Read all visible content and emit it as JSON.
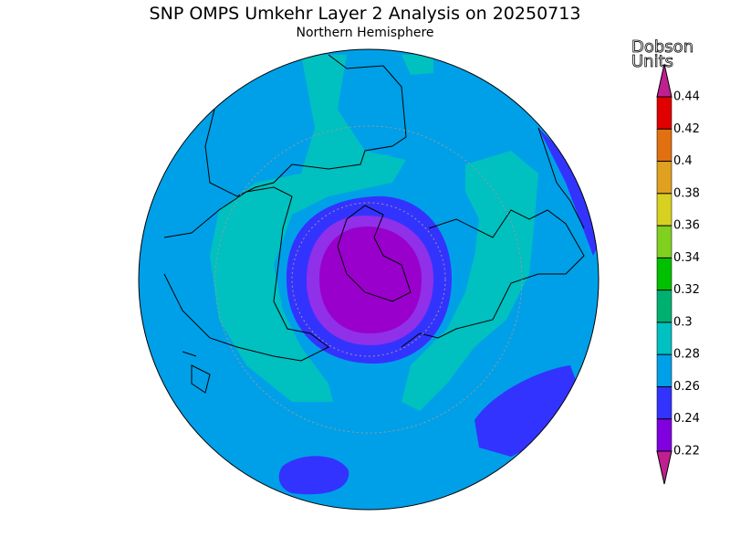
{
  "title": "SNP OMPS Umkehr Layer 2 Analysis on 20250713",
  "subtitle": "Northern Hemisphere",
  "colorbar": {
    "title_lines": [
      "Dobson",
      "Units"
    ],
    "ticks": [
      0.22,
      0.24,
      0.26,
      0.28,
      0.3,
      0.32,
      0.34,
      0.36,
      0.38,
      0.4,
      0.42,
      0.44
    ],
    "colors": [
      "#c0208f",
      "#8000e0",
      "#3333ff",
      "#00a0e8",
      "#00c0c0",
      "#00b070",
      "#00c000",
      "#80d020",
      "#d8d020",
      "#e0a020",
      "#e07010",
      "#e00000",
      "#c0208f"
    ]
  }
}
